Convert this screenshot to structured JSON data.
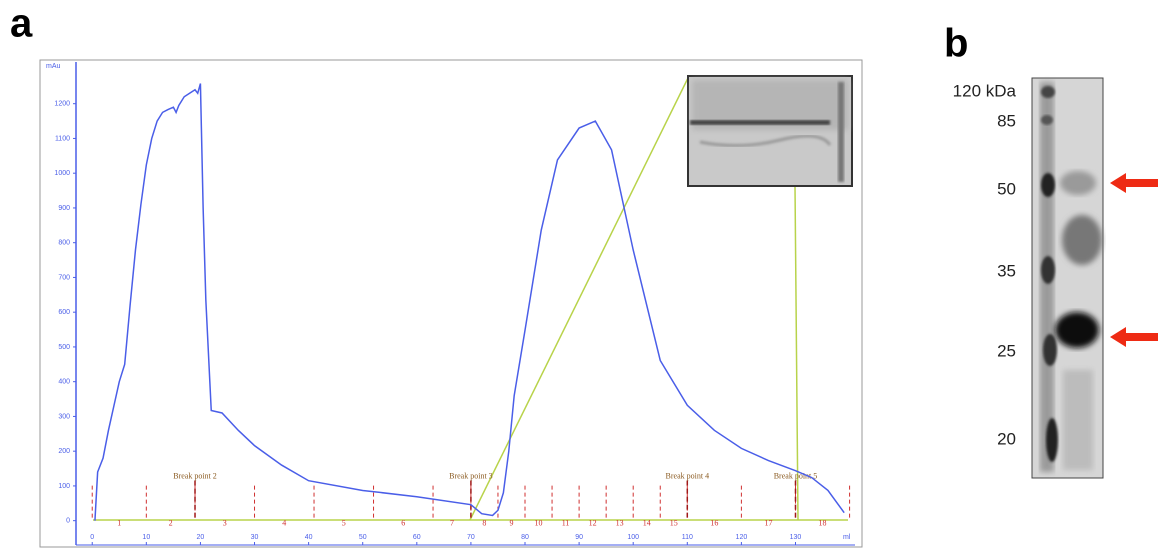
{
  "panels": {
    "a": "a",
    "b": "b"
  },
  "chart_data": {
    "type": "line",
    "y_unit": "mAu",
    "x_unit": "ml",
    "xlim": [
      -3,
      141
    ],
    "ylim": [
      -70,
      1320
    ],
    "xticks": [
      0,
      10,
      20,
      30,
      40,
      50,
      60,
      70,
      80,
      90,
      100,
      110,
      120,
      130
    ],
    "yticks": [
      0,
      100,
      200,
      300,
      400,
      500,
      600,
      700,
      800,
      900,
      1000,
      1100,
      1200
    ],
    "series": [
      {
        "color": "#4a5ee8",
        "x": [
          0.5,
          1,
          2,
          3,
          4,
          5,
          6,
          7,
          8,
          9,
          10,
          11,
          12,
          13,
          14,
          15,
          15.5,
          16,
          17,
          18,
          19,
          19.5,
          20,
          20.5,
          21,
          22,
          24,
          27,
          30,
          35,
          40,
          50,
          60,
          70,
          72,
          74,
          75,
          76,
          77,
          78,
          80,
          83,
          86,
          90,
          93,
          96,
          100,
          105,
          110,
          115,
          120,
          125,
          130,
          133,
          136,
          139
        ],
        "values": [
          0,
          140,
          180,
          260,
          330,
          400,
          450,
          620,
          780,
          910,
          1024,
          1100,
          1150,
          1175,
          1183,
          1190,
          1175,
          1195,
          1220,
          1230,
          1240,
          1230,
          1258,
          900,
          635,
          317,
          310,
          260,
          216,
          160,
          115,
          87,
          69,
          46,
          20,
          15,
          30,
          80,
          200,
          360,
          548,
          836,
          1038,
          1130,
          1150,
          1067,
          779,
          461,
          332,
          260,
          208,
          173,
          144,
          124,
          87,
          23
        ]
      }
    ],
    "fractions": {
      "edges": [
        0,
        10,
        19,
        30,
        41,
        52,
        63,
        70,
        75,
        80,
        85,
        90,
        95,
        100,
        105,
        110,
        120,
        130,
        140
      ],
      "labels": [
        "1",
        "2",
        "3",
        "4",
        "5",
        "6",
        "7",
        "8",
        "9",
        "10",
        "11",
        "12",
        "13",
        "14",
        "15",
        "16",
        "17",
        "18"
      ]
    },
    "break_points": [
      {
        "label": "Break point 2",
        "x": 19
      },
      {
        "label": "Break point 3",
        "x": 70
      },
      {
        "label": "Break point 4",
        "x": 110
      },
      {
        "label": "Break point 5",
        "x": 130
      }
    ]
  },
  "gel": {
    "markers": [
      "120 kDa",
      "85",
      "50",
      "35",
      "25",
      "20"
    ]
  }
}
